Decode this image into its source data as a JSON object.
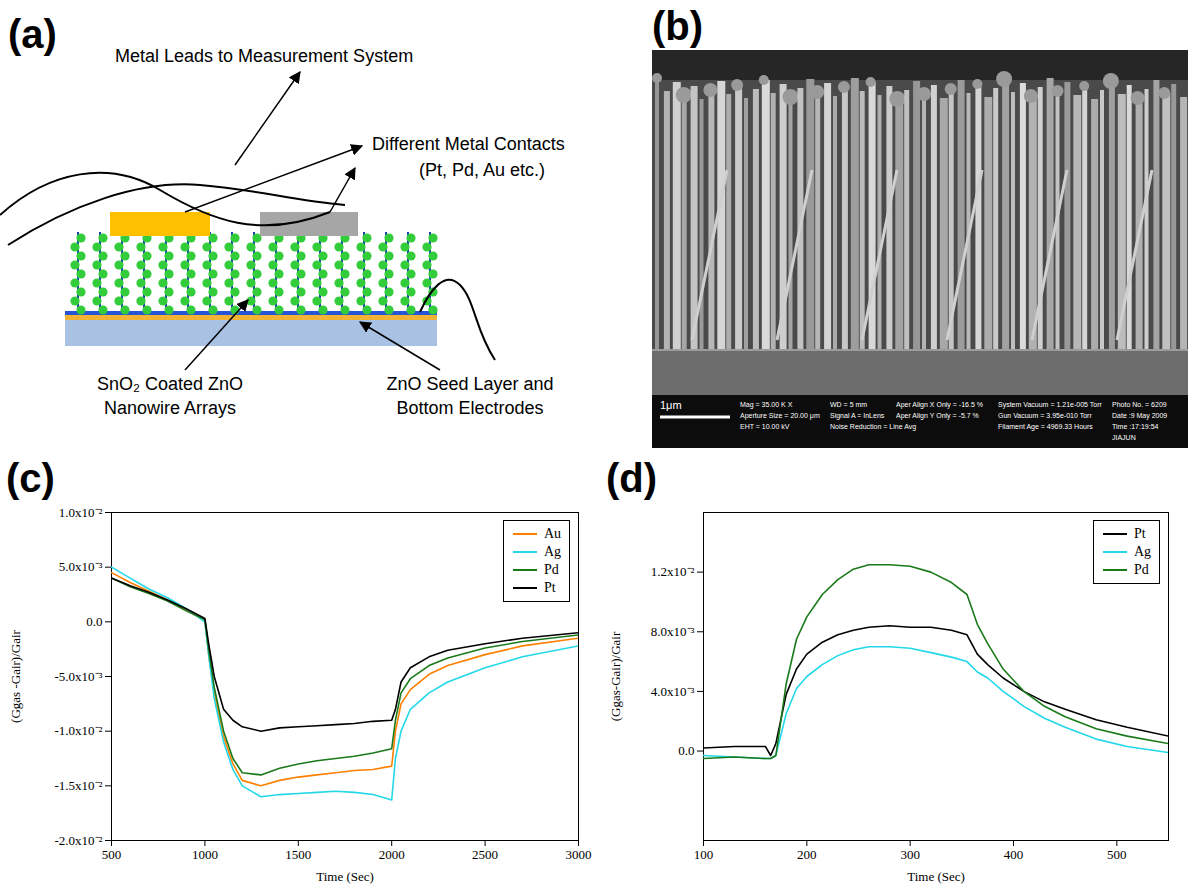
{
  "panel_labels": [
    "(a)",
    "(b)",
    "(c)",
    "(d)"
  ],
  "diagram": {
    "leads_label": "Metal Leads to Measurement System",
    "contacts_label": [
      "Different Metal Contacts",
      "(Pt, Pd, Au etc.)"
    ],
    "nanowire_label": [
      "SnO₂ Coated ZnO",
      "Nanowire Arrays"
    ],
    "seed_layer_label": [
      "ZnO Seed Layer and",
      "Bottom Electrodes"
    ]
  },
  "sem_image": {
    "scale_bar": "1μm",
    "info": [
      [
        "Mag = 35.00 K X",
        "Aperture Size = 20.00 μm",
        "EHT = 10.00 kV"
      ],
      [
        "WD = 5 mm",
        "Signal A = InLens",
        "Noise Reduction = Line Avg"
      ],
      [
        "Aper Align X Only = -16.5 %",
        "Aper Align Y Only = -5.7 %"
      ],
      [
        "System Vacuum = 1.21e-005 Torr",
        "Gun Vacuum = 3.95e-010 Torr",
        "Filament Age = 4969.33 Hours"
      ],
      [
        "Photo No. = 6209",
        "Date :9 May 2009",
        "Time :17:19:54",
        "JIAJUN"
      ]
    ]
  },
  "chart_data": [
    {
      "type": "line",
      "xlabel": "Time (Sec)",
      "ylabel": "(Ggas -Gair)/Gair",
      "xlim": [
        500,
        3000
      ],
      "xticks": [
        500,
        1000,
        1500,
        2000,
        2500,
        3000
      ],
      "ylim": [
        -0.02,
        0.01
      ],
      "yticks": [
        {
          "value": -0.02,
          "label": "-2.0x10⁻²"
        },
        {
          "value": -0.015,
          "label": "-1.5x10⁻²"
        },
        {
          "value": -0.01,
          "label": "-1.0x10⁻²"
        },
        {
          "value": -0.005,
          "label": "-5.0x10⁻³"
        },
        {
          "value": 0,
          "label": "0.0"
        },
        {
          "value": 0.005,
          "label": "5.0x10⁻³"
        },
        {
          "value": 0.01,
          "label": "1.0x10⁻²"
        }
      ],
      "grid": false,
      "legend": "top-right",
      "x": [
        500,
        600,
        700,
        800,
        900,
        1000,
        1020,
        1050,
        1100,
        1150,
        1200,
        1300,
        1400,
        1500,
        1600,
        1700,
        1800,
        1900,
        2000,
        2020,
        2050,
        2100,
        2200,
        2300,
        2500,
        2700,
        3000
      ],
      "series": [
        {
          "name": "Au",
          "color": "#ff8000",
          "values": [
            0.0045,
            0.0036,
            0.0028,
            0.002,
            0.0011,
            0.0001,
            -0.003,
            -0.0065,
            -0.0105,
            -0.013,
            -0.0145,
            -0.015,
            -0.0145,
            -0.0142,
            -0.014,
            -0.0138,
            -0.0136,
            -0.0135,
            -0.0132,
            -0.01,
            -0.0075,
            -0.0062,
            -0.0048,
            -0.004,
            -0.003,
            -0.0022,
            -0.0015
          ]
        },
        {
          "name": "Ag",
          "color": "#22d8e8",
          "values": [
            0.005,
            0.004,
            0.003,
            0.0022,
            0.0012,
            0.0,
            -0.003,
            -0.007,
            -0.011,
            -0.0135,
            -0.015,
            -0.016,
            -0.0158,
            -0.0157,
            -0.0156,
            -0.0155,
            -0.0156,
            -0.0158,
            -0.0163,
            -0.0125,
            -0.01,
            -0.008,
            -0.0065,
            -0.0055,
            -0.0042,
            -0.0032,
            -0.0022
          ]
        },
        {
          "name": "Pd",
          "color": "#1a7a1a",
          "values": [
            0.004,
            0.0032,
            0.0026,
            0.0019,
            0.001,
            0.0002,
            -0.0025,
            -0.006,
            -0.01,
            -0.0125,
            -0.0138,
            -0.014,
            -0.0134,
            -0.013,
            -0.0127,
            -0.0125,
            -0.0123,
            -0.012,
            -0.0116,
            -0.009,
            -0.0065,
            -0.0052,
            -0.004,
            -0.0033,
            -0.0024,
            -0.0018,
            -0.0012
          ]
        },
        {
          "name": "Pt",
          "color": "#000000",
          "values": [
            0.004,
            0.0033,
            0.0027,
            0.002,
            0.0012,
            0.0003,
            -0.002,
            -0.005,
            -0.008,
            -0.009,
            -0.0096,
            -0.01,
            -0.0097,
            -0.0096,
            -0.0095,
            -0.0094,
            -0.0093,
            -0.0091,
            -0.009,
            -0.008,
            -0.0055,
            -0.0042,
            -0.0032,
            -0.0026,
            -0.002,
            -0.0015,
            -0.001
          ]
        }
      ]
    },
    {
      "type": "line",
      "xlabel": "Time (Sec)",
      "ylabel": "(Ggas-Gair)/Gair",
      "xlim": [
        100,
        550
      ],
      "xticks": [
        100,
        200,
        300,
        400,
        500
      ],
      "ylim": [
        -0.006,
        0.016
      ],
      "yticks": [
        {
          "value": 0,
          "label": "0.0"
        },
        {
          "value": 0.004,
          "label": "4.0x10⁻³"
        },
        {
          "value": 0.008,
          "label": "8.0x10⁻³"
        },
        {
          "value": 0.012,
          "label": "1.2x10⁻²"
        }
      ],
      "grid": false,
      "legend": "top-right",
      "x": [
        100,
        130,
        160,
        165,
        170,
        180,
        190,
        200,
        215,
        230,
        245,
        260,
        280,
        300,
        320,
        340,
        355,
        365,
        375,
        390,
        410,
        430,
        450,
        480,
        510,
        550
      ],
      "series": [
        {
          "name": "Pt",
          "color": "#000000",
          "values": [
            0.0002,
            0.0003,
            0.0003,
            -0.0003,
            0.0005,
            0.0038,
            0.0055,
            0.0065,
            0.0073,
            0.0078,
            0.0081,
            0.0083,
            0.0084,
            0.0083,
            0.0083,
            0.0081,
            0.0078,
            0.0065,
            0.0058,
            0.0049,
            0.004,
            0.0033,
            0.0028,
            0.0021,
            0.0016,
            0.001
          ]
        },
        {
          "name": "Ag",
          "color": "#22d8e8",
          "values": [
            -0.0003,
            -0.0004,
            -0.0005,
            -0.0005,
            -0.0003,
            0.0025,
            0.0042,
            0.005,
            0.0058,
            0.0064,
            0.0068,
            0.007,
            0.007,
            0.0069,
            0.0066,
            0.0063,
            0.006,
            0.0053,
            0.0049,
            0.004,
            0.003,
            0.0022,
            0.0016,
            0.0008,
            0.0003,
            -0.0001
          ]
        },
        {
          "name": "Pd",
          "color": "#1a7a1a",
          "values": [
            -0.0005,
            -0.0004,
            -0.0005,
            -0.0005,
            -0.0003,
            0.0045,
            0.0075,
            0.009,
            0.0105,
            0.0115,
            0.0122,
            0.0125,
            0.0125,
            0.0124,
            0.012,
            0.0113,
            0.0105,
            0.0085,
            0.0072,
            0.0055,
            0.004,
            0.003,
            0.0023,
            0.0015,
            0.001,
            0.0005
          ]
        }
      ]
    }
  ]
}
